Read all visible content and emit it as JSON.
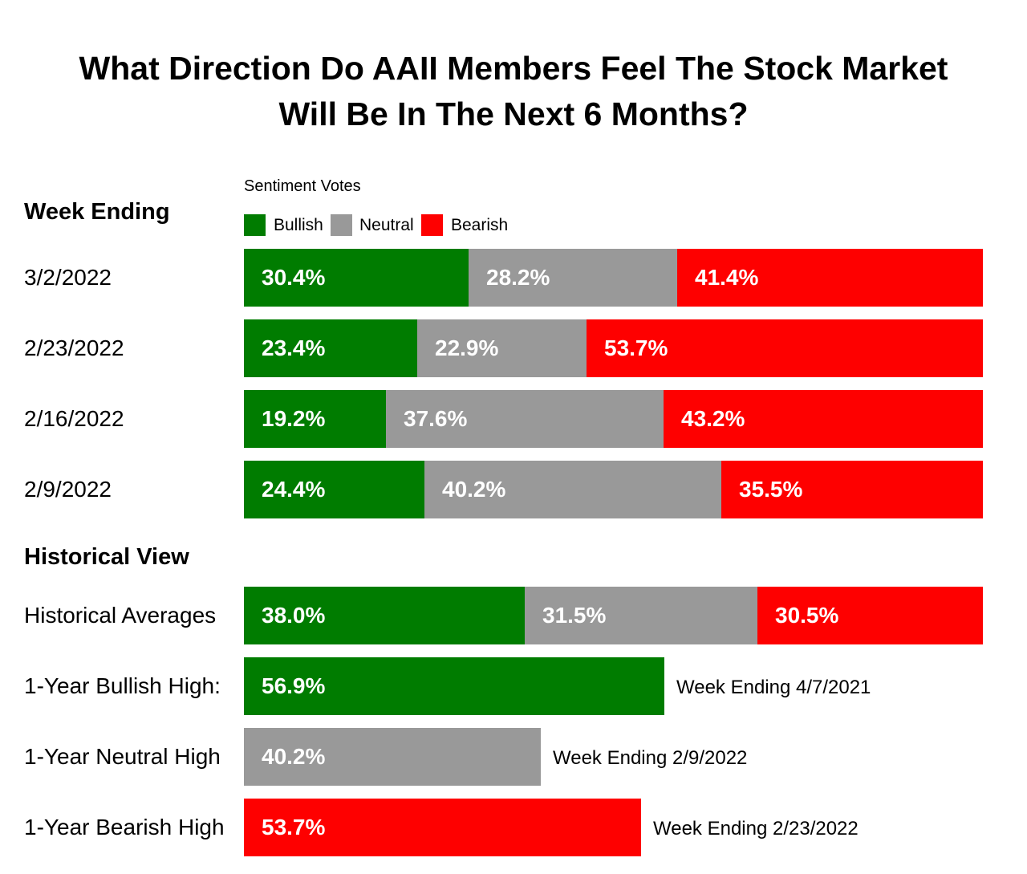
{
  "title_line1": "What Direction Do AAII Members Feel The Stock Market",
  "title_line2": "Will Be In The Next 6 Months?",
  "colors": {
    "bullish": "#007c00",
    "neutral": "#999999",
    "bearish": "#fe0000"
  },
  "legend": {
    "title": "Sentiment Votes",
    "items": [
      {
        "key": "bullish",
        "label": "Bullish"
      },
      {
        "key": "neutral",
        "label": "Neutral"
      },
      {
        "key": "bearish",
        "label": "Bearish"
      }
    ]
  },
  "week_section_title": "Week Ending",
  "historical_section_title": "Historical View",
  "chart_data": {
    "type": "bar",
    "orientation": "horizontal",
    "stacked": true,
    "title": "What Direction Do AAII Members Feel The Stock Market Will Be In The Next 6 Months?",
    "xlim": [
      0,
      100
    ],
    "unit": "%",
    "series_names": [
      "Bullish",
      "Neutral",
      "Bearish"
    ],
    "weekly": [
      {
        "label": "3/2/2022",
        "values": [
          30.4,
          28.2,
          41.4
        ],
        "texts": [
          "30.4%",
          "28.2%",
          "41.4%"
        ]
      },
      {
        "label": "2/23/2022",
        "values": [
          23.4,
          22.9,
          53.7
        ],
        "texts": [
          "23.4%",
          "22.9%",
          "53.7%"
        ]
      },
      {
        "label": "2/16/2022",
        "values": [
          19.2,
          37.6,
          43.2
        ],
        "texts": [
          "19.2%",
          "37.6%",
          "43.2%"
        ]
      },
      {
        "label": "2/9/2022",
        "values": [
          24.4,
          40.2,
          35.5
        ],
        "texts": [
          "24.4%",
          "40.2%",
          "35.5%"
        ]
      }
    ],
    "historical_averages": {
      "label": "Historical Averages",
      "values": [
        38.0,
        31.5,
        30.5
      ],
      "texts": [
        "38.0%",
        "31.5%",
        "30.5%"
      ]
    },
    "highs": [
      {
        "label": "1-Year Bullish High:",
        "series": "bullish",
        "value": 56.9,
        "text": "56.9%",
        "note": "Week Ending 4/7/2021"
      },
      {
        "label": "1-Year Neutral High",
        "series": "neutral",
        "value": 40.2,
        "text": "40.2%",
        "note": "Week Ending 2/9/2022"
      },
      {
        "label": "1-Year Bearish High",
        "series": "bearish",
        "value": 53.7,
        "text": "53.7%",
        "note": "Week Ending 2/23/2022"
      }
    ]
  }
}
